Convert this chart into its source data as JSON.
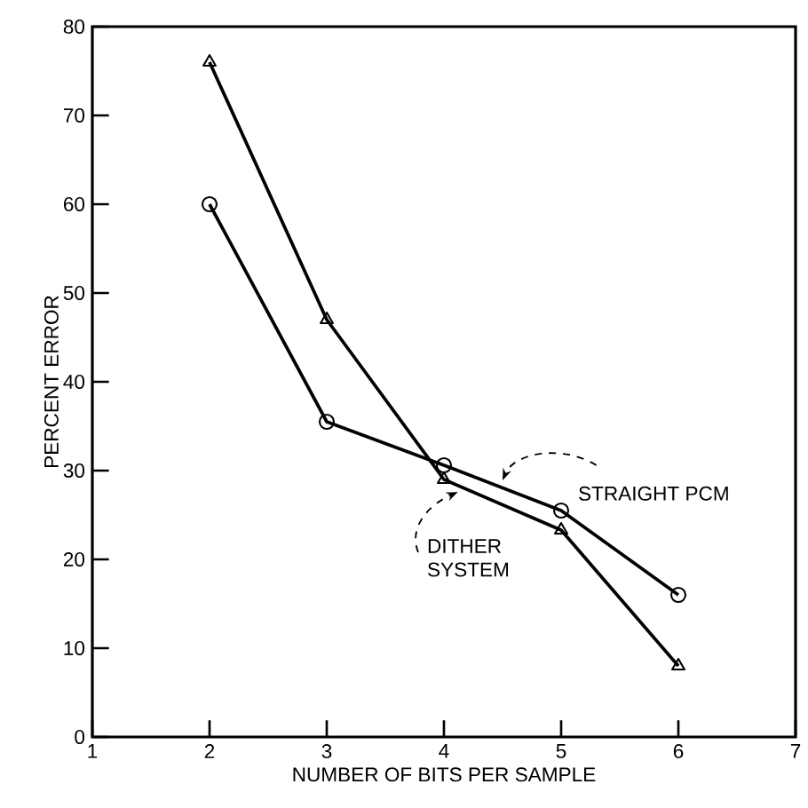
{
  "chart_data": {
    "type": "line",
    "xlabel": "NUMBER OF BITS PER SAMPLE",
    "ylabel": "PERCENT ERROR",
    "x": [
      2,
      3,
      4,
      5,
      6
    ],
    "series": [
      {
        "name": "STRAIGHT PCM",
        "color": "#000000",
        "marker": "circle",
        "values": [
          60,
          35.5,
          30.6,
          25.5,
          16
        ]
      },
      {
        "name": "DITHER SYSTEM",
        "color": "#000000",
        "marker": "triangle",
        "values": [
          76,
          47,
          29,
          23.3,
          8
        ]
      }
    ],
    "xlim": [
      1,
      7
    ],
    "xticks": [
      1,
      2,
      3,
      4,
      5,
      6,
      7
    ],
    "ylim": [
      0,
      80
    ],
    "yticks": [
      0,
      10,
      20,
      30,
      40,
      50,
      60,
      70,
      80
    ],
    "grid": false,
    "legend": false,
    "line_style": "solid"
  }
}
